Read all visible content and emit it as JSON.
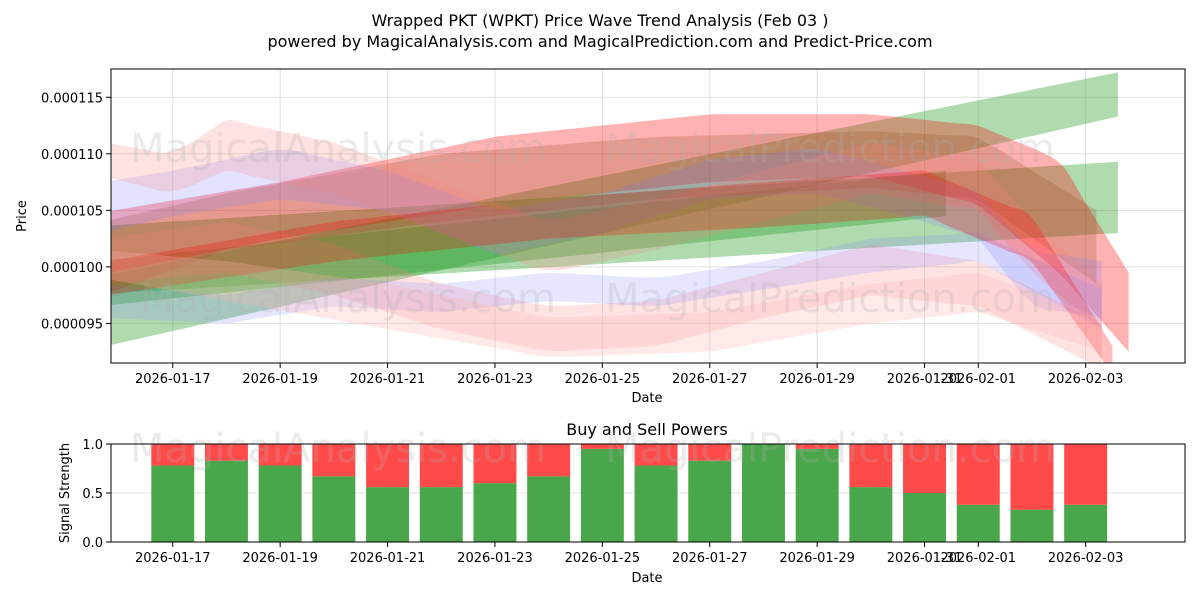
{
  "title_line1": "Wrapped PKT (WPKT) Price Wave Trend Analysis (Feb 03 )",
  "title_line2": "powered by MagicalAnalysis.com and MagicalPrediction.com and Predict-Price.com",
  "watermarks": [
    "MagicalAnalysis.com",
    "MagicalPrediction.com"
  ],
  "chart_data": [
    {
      "type": "area",
      "title": "",
      "xlabel": "Date",
      "ylabel": "Price",
      "x_range_days": [
        -1.15,
        18.85
      ],
      "ylim": [
        9.15e-05,
        0.0001175
      ],
      "grid": true,
      "x_ticks": [
        "2026-01-17",
        "2026-01-19",
        "2026-01-21",
        "2026-01-23",
        "2026-01-25",
        "2026-01-27",
        "2026-01-29",
        "2026-01-31",
        "2026-02-01",
        "2026-02-03"
      ],
      "x_tick_days": [
        0,
        2,
        4,
        6,
        8,
        10,
        12,
        14,
        15,
        17
      ],
      "y_ticks": [
        "0.000095",
        "0.000100",
        "0.000105",
        "0.000110",
        "0.000115"
      ],
      "y_tick_values": [
        9.5e-05,
        0.0001,
        0.000105,
        0.00011,
        0.000115
      ],
      "bands": [
        {
          "color": "#2ca02c",
          "opacity": 0.38,
          "x": [
            -1.7,
            17.6
          ],
          "upper": [
            9.88e-05,
            0.0001172
          ],
          "lower": [
            9.25e-05,
            0.0001133
          ]
        },
        {
          "color": "#2ca02c",
          "opacity": 0.38,
          "x": [
            -1.7,
            17.6
          ],
          "upper": [
            0.0001035,
            0.0001093
          ],
          "lower": [
            9.75e-05,
            0.000103
          ]
        },
        {
          "color": "#2ca02c",
          "opacity": 0.38,
          "x": [
            -1.4,
            14.4
          ],
          "upper": [
            0.0001005,
            0.0001085
          ],
          "lower": [
            9.65e-05,
            0.0001045
          ]
        },
        {
          "color": "#ff0000",
          "opacity": 0.3,
          "x": [
            -1.7,
            2.0,
            6.0,
            10.0,
            13.0,
            15.0,
            16.5,
            17.8
          ],
          "upper": [
            0.0001045,
            0.0001075,
            0.0001115,
            0.0001135,
            0.0001135,
            0.0001125,
            0.0001095,
            9.95e-05
          ],
          "lower": [
            9.9e-05,
            0.0001025,
            0.0001055,
            0.0001075,
            0.000108,
            0.0001055,
            9.95e-05,
            9.25e-05
          ]
        },
        {
          "color": "#8b4513",
          "opacity": 0.22,
          "x": [
            -1.3,
            1.0,
            5.0,
            9.0,
            13.0,
            15.0,
            17.2
          ],
          "upper": [
            0.000104,
            0.0001065,
            0.00011,
            0.0001115,
            0.000112,
            0.0001115,
            0.000105
          ],
          "lower": [
            9.75e-05,
            0.0001015,
            0.000104,
            0.000106,
            0.000107,
            0.000106,
            9.85e-05
          ]
        },
        {
          "color": "#8080ff",
          "opacity": 0.22,
          "x": [
            -1.3,
            0.0,
            2.0,
            4.0,
            6.0,
            8.0,
            10.0,
            12.0,
            14.0,
            15.0,
            16.0,
            17.3
          ],
          "upper": [
            0.0001075,
            0.0001085,
            0.0001105,
            0.0001085,
            0.000105,
            0.0001065,
            0.0001095,
            0.0001105,
            0.000108,
            0.0001065,
            0.0001015,
            0.0001005
          ],
          "lower": [
            0.000103,
            0.0001045,
            0.000106,
            0.000105,
            0.000101,
            0.000103,
            0.000106,
            0.0001065,
            0.000104,
            0.0001025,
            9.65e-05,
            9.55e-05
          ]
        },
        {
          "color": "#ff8080",
          "opacity": 0.22,
          "x": [
            -1.3,
            0.0,
            1.0,
            3.0,
            5.0,
            7.0,
            9.0,
            11.0,
            13.0,
            15.0,
            16.0,
            17.3
          ],
          "upper": [
            0.000111,
            0.00011,
            0.000113,
            0.000111,
            0.0001075,
            0.000104,
            0.000106,
            0.0001085,
            0.000111,
            0.0001095,
            0.000104,
            9.85e-05
          ],
          "lower": [
            0.000108,
            0.0001065,
            0.0001085,
            0.0001065,
            0.000103,
            9.95e-05,
            0.0001015,
            0.000104,
            0.0001065,
            0.000105,
            9.95e-05,
            9.45e-05
          ]
        },
        {
          "color": "#ff8080",
          "opacity": 0.22,
          "x": [
            -1.3,
            1.0,
            3.0,
            5.0,
            7.0,
            9.0,
            11.0,
            13.0,
            15.0,
            17.3
          ],
          "upper": [
            0.0001025,
            0.000104,
            0.000102,
            9.85e-05,
            9.65e-05,
            9.7e-05,
            9.95e-05,
            0.000102,
            0.0001005,
            9.5e-05
          ],
          "lower": [
            9.85e-05,
            9.95e-05,
            9.75e-05,
            9.45e-05,
            9.25e-05,
            9.3e-05,
            9.55e-05,
            9.75e-05,
            9.65e-05,
            9.1e-05
          ]
        },
        {
          "color": "#8080ff",
          "opacity": 0.2,
          "x": [
            -1.3,
            1.0,
            3.0,
            5.0,
            7.0,
            9.0,
            11.0,
            13.0,
            15.0,
            17.3
          ],
          "upper": [
            9.85e-05,
            9.75e-05,
            9.9e-05,
            9.85e-05,
            9.95e-05,
            9.9e-05,
            0.0001005,
            0.0001025,
            0.000103,
            9.8e-05
          ],
          "lower": [
            9.55e-05,
            9.5e-05,
            9.65e-05,
            9.6e-05,
            9.7e-05,
            9.65e-05,
            9.8e-05,
            9.95e-05,
            0.0001005,
            9.45e-05
          ]
        },
        {
          "color": "#ff0000",
          "opacity": 0.26,
          "x": [
            -1.2,
            3.0,
            7.0,
            11.0,
            14.0,
            16.0,
            17.5
          ],
          "upper": [
            0.0001005,
            0.000104,
            0.000106,
            0.0001075,
            0.0001085,
            0.0001045,
            9.3e-05
          ],
          "lower": [
            9.75e-05,
            0.0001005,
            0.0001025,
            0.0001035,
            0.0001045,
            0.0001005,
            9.05e-05
          ]
        },
        {
          "color": "#ffb0b0",
          "opacity": 0.28,
          "x": [
            -1.3,
            1.0,
            4.0,
            7.0,
            10.0,
            13.0,
            15.0,
            17.3
          ],
          "upper": [
            0.0001015,
            0.0001005,
            9.85e-05,
            9.55e-05,
            9.6e-05,
            9.85e-05,
            9.95e-05,
            9.55e-05
          ],
          "lower": [
            9.9e-05,
            9.7e-05,
            9.45e-05,
            9.2e-05,
            9.25e-05,
            9.5e-05,
            9.6e-05,
            9.25e-05
          ]
        }
      ]
    },
    {
      "type": "bar",
      "title": "Buy and Sell Powers",
      "xlabel": "Date",
      "ylabel": "Signal Strength",
      "x_range_days": [
        -1.15,
        18.85
      ],
      "ylim": [
        0,
        1
      ],
      "grid": true,
      "x_ticks": [
        "2026-01-17",
        "2026-01-19",
        "2026-01-21",
        "2026-01-23",
        "2026-01-25",
        "2026-01-27",
        "2026-01-29",
        "2026-01-31",
        "2026-02-01",
        "2026-02-03"
      ],
      "x_tick_days": [
        0,
        2,
        4,
        6,
        8,
        10,
        12,
        14,
        15,
        17
      ],
      "y_ticks": [
        "0.0",
        "0.5",
        "1.0"
      ],
      "y_tick_values": [
        0,
        0.5,
        1
      ],
      "bar_days": [
        0,
        1,
        2,
        3,
        4,
        5,
        6,
        7,
        8,
        9,
        10,
        11,
        12,
        13,
        14,
        15,
        16,
        17
      ],
      "buy": [
        0.78,
        0.83,
        0.78,
        0.67,
        0.56,
        0.56,
        0.6,
        0.67,
        0.95,
        0.78,
        0.83,
        1.0,
        0.95,
        0.56,
        0.5,
        0.38,
        0.33,
        0.38
      ],
      "buy_color": "#4aa64a",
      "sell_color": "#ff4a4a"
    }
  ]
}
